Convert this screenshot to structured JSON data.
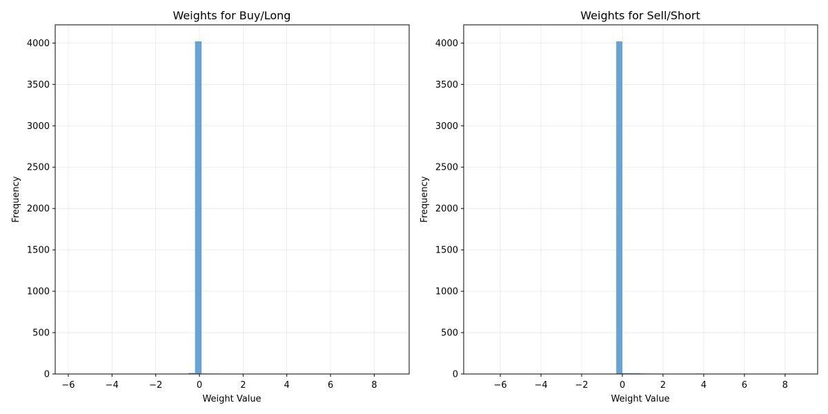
{
  "chart_data": [
    {
      "type": "bar",
      "title": "Weights for Buy/Long",
      "xlabel": "Weight Value",
      "ylabel": "Frequency",
      "xlim": [
        -6.6,
        9.6
      ],
      "ylim": [
        0,
        4220
      ],
      "xticks": [
        "−6",
        "−4",
        "−2",
        "0",
        "2",
        "4",
        "6",
        "8"
      ],
      "yticks": [
        "0",
        "500",
        "1000",
        "1500",
        "2000",
        "2500",
        "3000",
        "3500",
        "4000"
      ],
      "xtick_values": [
        -6,
        -4,
        -2,
        0,
        2,
        4,
        6,
        8
      ],
      "ytick_values": [
        0,
        500,
        1000,
        1500,
        2000,
        2500,
        3000,
        3500,
        4000
      ],
      "grid": true,
      "bar_color": "#5b9bd5",
      "bins": [
        {
          "x0": -4.4,
          "x1": -4.1,
          "value": 3
        },
        {
          "x0": -2.6,
          "x1": -2.3,
          "value": 2
        },
        {
          "x0": -1.4,
          "x1": -1.1,
          "value": 4
        },
        {
          "x0": -1.1,
          "x1": -0.8,
          "value": 3
        },
        {
          "x0": -0.5,
          "x1": -0.2,
          "value": 12
        },
        {
          "x0": -0.2,
          "x1": 0.1,
          "value": 4020
        },
        {
          "x0": 0.1,
          "x1": 0.4,
          "value": 6
        },
        {
          "x0": 0.4,
          "x1": 0.7,
          "value": 5
        },
        {
          "x0": 0.7,
          "x1": 1.0,
          "value": 5
        },
        {
          "x0": 1.0,
          "x1": 1.3,
          "value": 4
        },
        {
          "x0": 1.3,
          "x1": 1.6,
          "value": 3
        },
        {
          "x0": 1.8,
          "x1": 2.1,
          "value": 4
        },
        {
          "x0": 2.4,
          "x1": 2.7,
          "value": 3
        },
        {
          "x0": 3.9,
          "x1": 4.2,
          "value": 3
        }
      ]
    },
    {
      "type": "bar",
      "title": "Weights for Sell/Short",
      "xlabel": "Weight Value",
      "ylabel": "Frequency",
      "xlim": [
        -7.8,
        9.6
      ],
      "ylim": [
        0,
        4220
      ],
      "xticks": [
        "−6",
        "−4",
        "−2",
        "0",
        "2",
        "4",
        "6",
        "8"
      ],
      "yticks": [
        "0",
        "500",
        "1000",
        "1500",
        "2000",
        "2500",
        "3000",
        "3500",
        "4000"
      ],
      "xtick_values": [
        -6,
        -4,
        -2,
        0,
        2,
        4,
        6,
        8
      ],
      "ytick_values": [
        0,
        500,
        1000,
        1500,
        2000,
        2500,
        3000,
        3500,
        4000
      ],
      "grid": true,
      "bar_color": "#5b9bd5",
      "bins": [
        {
          "x0": -1.5,
          "x1": -1.2,
          "value": 3
        },
        {
          "x0": -0.6,
          "x1": -0.3,
          "value": 4
        },
        {
          "x0": -0.3,
          "x1": 0.0,
          "value": 4020
        },
        {
          "x0": 0.0,
          "x1": 0.3,
          "value": 10
        },
        {
          "x0": 0.3,
          "x1": 0.6,
          "value": 9
        },
        {
          "x0": 0.6,
          "x1": 0.9,
          "value": 8
        },
        {
          "x0": 0.9,
          "x1": 1.2,
          "value": 6
        },
        {
          "x0": 1.2,
          "x1": 1.5,
          "value": 5
        },
        {
          "x0": 1.5,
          "x1": 1.8,
          "value": 5
        },
        {
          "x0": 1.8,
          "x1": 2.1,
          "value": 4
        },
        {
          "x0": 2.1,
          "x1": 2.4,
          "value": 4
        },
        {
          "x0": 2.4,
          "x1": 2.7,
          "value": 3
        },
        {
          "x0": 3.0,
          "x1": 3.3,
          "value": 3
        },
        {
          "x0": 3.3,
          "x1": 3.6,
          "value": 4
        },
        {
          "x0": 3.6,
          "x1": 3.9,
          "value": 5
        },
        {
          "x0": 3.9,
          "x1": 4.2,
          "value": 4
        },
        {
          "x0": 4.2,
          "x1": 4.5,
          "value": 3
        }
      ]
    }
  ]
}
